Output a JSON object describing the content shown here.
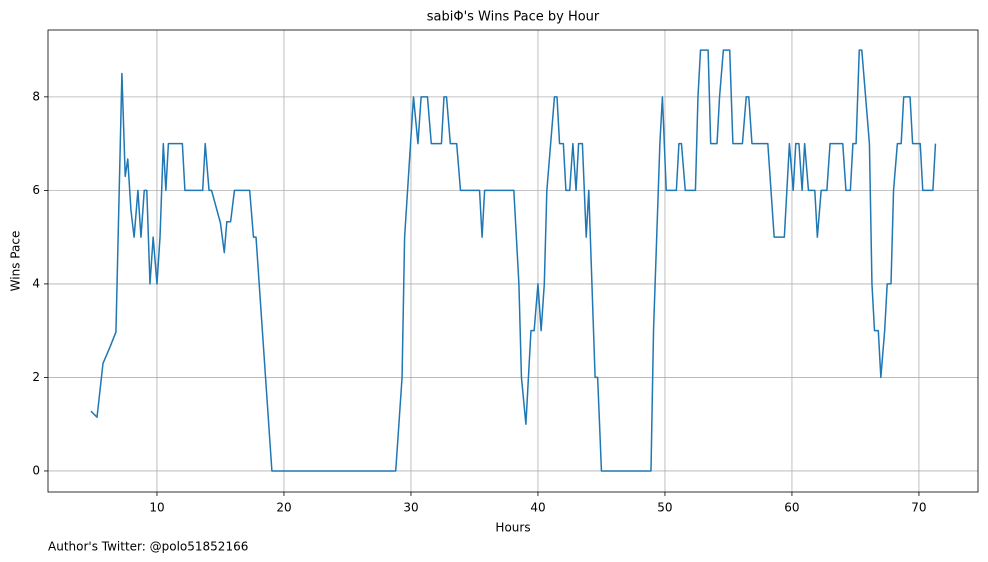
{
  "chart_data": {
    "type": "line",
    "title": "sabiΦ's Wins Pace by Hour",
    "xlabel": "Hours",
    "ylabel": "Wins Pace",
    "footer": "Author's Twitter: @polo51852166",
    "x": [
      4.8,
      5.28,
      5.75,
      6.3,
      6.77,
      7.24,
      7.5,
      7.7,
      7.95,
      8.2,
      8.5,
      8.74,
      9.0,
      9.2,
      9.45,
      9.7,
      10,
      10.24,
      10.5,
      10.7,
      10.9,
      12,
      12.2,
      13.6,
      13.8,
      14.1,
      14.3,
      15.0,
      15.3,
      15.5,
      15.8,
      16.1,
      17.3,
      17.6,
      17.8,
      19.05,
      28.8,
      29.3,
      29.5,
      30.2,
      30.55,
      30.8,
      31.3,
      31.6,
      32.4,
      32.6,
      32.8,
      33.1,
      33.6,
      33.9,
      35.4,
      35.6,
      35.8,
      38.1,
      38.5,
      38.7,
      39.05,
      39.45,
      39.7,
      40,
      40.25,
      40.5,
      40.7,
      41.3,
      41.5,
      41.7,
      42.0,
      42.2,
      42.5,
      42.75,
      43.0,
      43.2,
      43.5,
      43.8,
      44.0,
      44.5,
      44.7,
      45.0,
      48.9,
      49.1,
      49.6,
      49.8,
      50.1,
      50.9,
      51.1,
      51.3,
      51.6,
      52.4,
      52.6,
      52.8,
      53.4,
      53.6,
      54.1,
      54.3,
      54.6,
      55.1,
      55.35,
      56.1,
      56.4,
      56.6,
      56.85,
      58.1,
      58.6,
      59.4,
      59.8,
      60.1,
      60.3,
      60.55,
      60.8,
      61.0,
      61.3,
      61.8,
      62.0,
      62.3,
      62.75,
      63.0,
      64.0,
      64.25,
      64.6,
      64.8,
      65.05,
      65.3,
      65.5,
      66.1,
      66.3,
      66.5,
      66.8,
      67.0,
      67.3,
      67.5,
      67.8,
      68.0,
      68.3,
      68.6,
      68.8,
      69.3,
      69.5,
      70.1,
      70.3,
      71.1,
      71.3
    ],
    "series": [
      {
        "name": "Wins Pace",
        "color": "#1f77b4",
        "values": [
          1.28,
          1.15,
          2.3,
          2.65,
          2.97,
          8.5,
          6.3,
          6.67,
          5.58,
          5,
          6,
          5,
          6,
          6,
          4,
          5,
          4,
          5,
          7,
          6,
          7,
          7,
          6,
          6,
          7,
          6,
          6,
          5.3,
          4.67,
          5.33,
          5.33,
          6,
          6,
          5,
          5,
          0,
          0,
          2,
          5,
          8,
          7,
          8,
          8,
          7,
          7,
          8,
          8,
          7,
          7,
          6,
          6,
          5,
          6,
          6,
          4,
          2,
          1,
          3,
          3,
          4,
          3,
          4,
          6,
          8,
          8,
          7,
          7,
          6,
          6,
          7,
          6,
          7,
          7,
          5,
          6,
          2,
          2,
          0,
          0,
          3,
          7,
          8,
          6,
          6,
          7,
          7,
          6,
          6,
          8,
          9,
          9,
          7,
          7,
          8,
          9,
          9,
          7,
          7,
          8,
          8,
          7,
          7,
          5,
          5,
          7,
          6,
          7,
          7,
          6,
          7,
          6,
          6,
          5,
          6,
          6,
          7,
          7,
          6,
          6,
          7,
          7,
          9,
          9,
          7,
          4,
          3,
          3,
          2,
          3,
          4,
          4,
          6,
          7,
          7,
          8,
          8,
          7,
          7,
          6,
          6,
          7
        ]
      }
    ],
    "xlim": [
      1.42,
      74.65
    ],
    "ylim": [
      -0.45,
      9.43
    ],
    "xticks": [
      10,
      20,
      30,
      40,
      50,
      60,
      70
    ],
    "yticks": [
      0,
      2,
      4,
      6,
      8
    ],
    "grid": true
  }
}
